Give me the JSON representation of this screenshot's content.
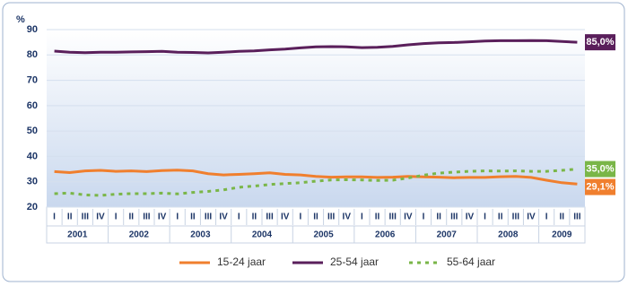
{
  "chart_data": {
    "type": "line",
    "y_label": "%",
    "categories": [
      "I",
      "II",
      "III",
      "IV",
      "I",
      "II",
      "III",
      "IV",
      "I",
      "II",
      "III",
      "IV",
      "I",
      "II",
      "III",
      "IV",
      "I",
      "II",
      "III",
      "IV",
      "I",
      "II",
      "III",
      "IV",
      "I",
      "II",
      "III",
      "IV",
      "I",
      "II",
      "III",
      "IV",
      "I",
      "II",
      "III"
    ],
    "years": [
      "2001",
      "2002",
      "2003",
      "2004",
      "2005",
      "2006",
      "2007",
      "2008",
      "2009"
    ],
    "ylim": [
      20,
      90
    ],
    "yticks": [
      20,
      30,
      40,
      50,
      60,
      70,
      80,
      90
    ],
    "grid": true,
    "series": [
      {
        "name": "15-24 jaar",
        "color": "#f07f2e",
        "dash": false,
        "values": [
          34.0,
          33.6,
          34.3,
          34.5,
          34.1,
          34.3,
          34.0,
          34.4,
          34.6,
          34.3,
          33.2,
          32.7,
          32.9,
          33.2,
          33.5,
          32.9,
          32.7,
          32.1,
          31.8,
          31.9,
          31.9,
          31.7,
          31.8,
          32.1,
          31.9,
          31.8,
          31.6,
          31.7,
          31.7,
          32.0,
          32.1,
          31.7,
          30.6,
          29.6,
          29.1
        ],
        "value_labels": [
          null,
          null,
          null,
          null,
          null,
          null,
          null,
          null,
          null,
          null,
          null,
          null,
          null,
          null,
          null,
          null,
          null,
          null,
          null,
          null,
          null,
          null,
          null,
          null,
          null,
          null,
          null,
          null,
          null,
          null,
          null,
          null,
          null,
          null,
          "29,1%"
        ]
      },
      {
        "name": "25-54 jaar",
        "color": "#5a1f5b",
        "dash": false,
        "values": [
          81.5,
          81.1,
          80.9,
          81.1,
          81.1,
          81.2,
          81.3,
          81.4,
          81.1,
          81.0,
          80.8,
          81.1,
          81.4,
          81.6,
          82.0,
          82.3,
          82.8,
          83.2,
          83.3,
          83.2,
          82.9,
          83.0,
          83.4,
          84.0,
          84.5,
          84.8,
          84.9,
          85.2,
          85.5,
          85.6,
          85.6,
          85.7,
          85.6,
          85.3,
          85.0
        ],
        "value_labels": [
          null,
          null,
          null,
          null,
          null,
          null,
          null,
          null,
          null,
          null,
          null,
          null,
          null,
          null,
          null,
          null,
          null,
          null,
          null,
          null,
          null,
          null,
          null,
          null,
          null,
          null,
          null,
          null,
          null,
          null,
          null,
          null,
          null,
          null,
          "85,0%"
        ]
      },
      {
        "name": "55-64 jaar",
        "color": "#7ab648",
        "dash": true,
        "values": [
          25.3,
          25.5,
          24.8,
          24.6,
          25.1,
          25.3,
          25.3,
          25.5,
          25.2,
          25.8,
          26.2,
          26.8,
          27.8,
          28.3,
          28.9,
          29.3,
          29.6,
          30.2,
          30.7,
          30.8,
          30.7,
          30.5,
          30.6,
          31.5,
          32.6,
          33.4,
          33.8,
          34.1,
          34.3,
          34.2,
          34.3,
          34.1,
          34.1,
          34.5,
          35.0
        ],
        "value_labels": [
          null,
          null,
          null,
          null,
          null,
          null,
          null,
          null,
          null,
          null,
          null,
          null,
          null,
          null,
          null,
          null,
          null,
          null,
          null,
          null,
          null,
          null,
          null,
          null,
          null,
          null,
          null,
          null,
          null,
          null,
          null,
          null,
          null,
          null,
          "35,0%"
        ]
      }
    ]
  }
}
